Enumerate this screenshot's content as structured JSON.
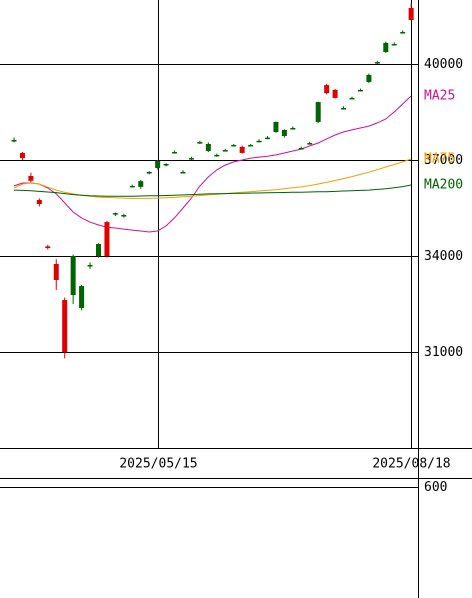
{
  "chart_data": {
    "type": "candlestick",
    "categories": [
      null,
      null,
      null,
      null,
      null,
      null,
      null,
      null,
      null,
      null,
      null,
      null,
      null,
      null,
      null,
      null,
      null,
      "2025/05/15",
      null,
      null,
      null,
      null,
      null,
      null,
      null,
      null,
      null,
      null,
      null,
      null,
      null,
      null,
      null,
      null,
      null,
      null,
      null,
      null,
      null,
      null,
      null,
      null,
      null,
      null,
      null,
      null,
      null,
      "2025/08/18"
    ],
    "open": [
      37600,
      37220,
      36500,
      35750,
      34300,
      33750,
      32625,
      32780,
      32375,
      33700,
      34000,
      35060,
      35300,
      35280,
      36190,
      36160,
      36600,
      36750,
      36875,
      37250,
      36625,
      37060,
      37560,
      37280,
      37160,
      37310,
      37470,
      37410,
      37470,
      37600,
      37700,
      37875,
      37750,
      38000,
      37375,
      37530,
      38190,
      39340,
      39190,
      38625,
      38940,
      39190,
      39440,
      40060,
      40375,
      40625,
      41000,
      41750
    ],
    "high": [
      37700,
      37250,
      36600,
      35800,
      34350,
      33900,
      32700,
      34050,
      33100,
      33800,
      34400,
      35100,
      35360,
      35320,
      36230,
      36380,
      36650,
      37000,
      36900,
      37300,
      36680,
      37100,
      37600,
      37550,
      37200,
      37350,
      37500,
      37450,
      37500,
      37650,
      37750,
      38200,
      37960,
      38050,
      37420,
      37570,
      38820,
      39380,
      39220,
      38680,
      38980,
      39230,
      39700,
      40100,
      40700,
      40680,
      41050,
      41900
    ],
    "low": [
      37550,
      37000,
      36300,
      35550,
      34200,
      32940,
      30800,
      32500,
      32300,
      33600,
      33950,
      33950,
      35250,
      35200,
      36150,
      36100,
      36550,
      36700,
      36800,
      37200,
      36580,
      37000,
      37500,
      37250,
      37100,
      37280,
      37420,
      37200,
      37430,
      37550,
      37650,
      37850,
      37700,
      37950,
      37330,
      37480,
      38150,
      39050,
      38920,
      38580,
      38900,
      39150,
      39400,
      40000,
      40350,
      40580,
      40950,
      41350
    ],
    "close": [
      37625,
      37060,
      36350,
      35625,
      34250,
      33250,
      31000,
      34000,
      33060,
      33720,
      34375,
      34000,
      35340,
      35280,
      36190,
      36340,
      36625,
      36970,
      36875,
      37250,
      36625,
      37060,
      37560,
      37500,
      37160,
      37310,
      37470,
      37220,
      37470,
      37600,
      37700,
      38190,
      37940,
      38000,
      37375,
      37530,
      38810,
      39090,
      38940,
      38625,
      38940,
      39190,
      39660,
      40060,
      40660,
      40625,
      41000,
      41375
    ],
    "up_color": "#006400",
    "down_color": "#e00000",
    "series": [
      {
        "name": "MA25",
        "color": "#d0109a",
        "values": [
          36190,
          36280,
          36280,
          36250,
          36125,
          35940,
          35660,
          35375,
          35190,
          35060,
          34970,
          34900,
          34875,
          34840,
          34810,
          34780,
          34750,
          34780,
          34940,
          35190,
          35500,
          35810,
          36190,
          36470,
          36690,
          36840,
          36940,
          37000,
          37060,
          37090,
          37120,
          37160,
          37220,
          37280,
          37340,
          37440,
          37530,
          37660,
          37780,
          37875,
          37940,
          38000,
          38060,
          38160,
          38280,
          38500,
          38750,
          39000
        ]
      },
      {
        "name": "MA75",
        "color": "#f0a000",
        "values": [
          36125,
          36250,
          36280,
          36250,
          36150,
          36060,
          35990,
          35940,
          35900,
          35870,
          35840,
          35830,
          35820,
          35810,
          35800,
          35800,
          35800,
          35810,
          35820,
          35830,
          35850,
          35870,
          35890,
          35910,
          35930,
          35950,
          35970,
          35990,
          36010,
          36030,
          36050,
          36070,
          36100,
          36130,
          36160,
          36200,
          36250,
          36300,
          36360,
          36420,
          36480,
          36550,
          36620,
          36700,
          36780,
          36860,
          36940,
          37030
        ]
      },
      {
        "name": "MA200",
        "color": "#006400",
        "values": [
          36060,
          36050,
          36040,
          36020,
          36000,
          35980,
          35950,
          35920,
          35900,
          35880,
          35875,
          35870,
          35870,
          35870,
          35870,
          35875,
          35880,
          35885,
          35890,
          35900,
          35910,
          35920,
          35930,
          35940,
          35945,
          35950,
          35955,
          35960,
          35965,
          35970,
          35975,
          35980,
          35985,
          35990,
          35995,
          36000,
          36005,
          36010,
          36020,
          36030,
          36040,
          36050,
          36060,
          36080,
          36100,
          36130,
          36170,
          36220
        ]
      }
    ],
    "ylim": [
      28000,
      42000
    ],
    "yticks": [
      31000,
      34000,
      37000,
      40000
    ],
    "grid": true,
    "volume_panel": {
      "ylim": [
        300,
        620
      ],
      "yticks": [
        600
      ]
    }
  }
}
